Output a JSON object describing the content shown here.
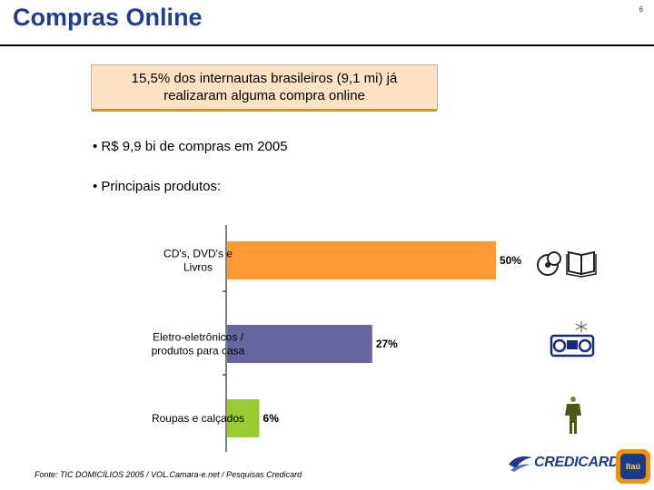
{
  "header": {
    "title": "Compras Online",
    "page_number": "6"
  },
  "highlight": {
    "line1": "15,5% dos internautas brasileiros (9,1 mi) já",
    "line2": "realizaram alguma compra online"
  },
  "bullets": [
    "• R$ 9,9 bi de compras em 2005",
    "• Principais produtos:"
  ],
  "chart_data": {
    "type": "bar",
    "orientation": "horizontal",
    "categories": [
      [
        "CD's, DVD's e",
        "Livros"
      ],
      [
        "Eletro-eletrônicos /",
        "produtos para casa"
      ],
      [
        "Roupas e calçados"
      ]
    ],
    "values": [
      50,
      27,
      6
    ],
    "value_labels": [
      "50%",
      "27%",
      "6%"
    ],
    "colors": [
      "#ff9933",
      "#6666a0",
      "#99cc33"
    ],
    "grid": false,
    "legend": "none",
    "icons": [
      "cd-books-icon",
      "boombox-icon",
      "clothes-icon"
    ]
  },
  "footer": {
    "source": "Fonte: TIC DOMICÍLIOS 2005 / VOL.Camara-e.net / Pesquisas Credicard",
    "credicard_logo": "CREDICARD",
    "itau_logo": "Itaú"
  }
}
